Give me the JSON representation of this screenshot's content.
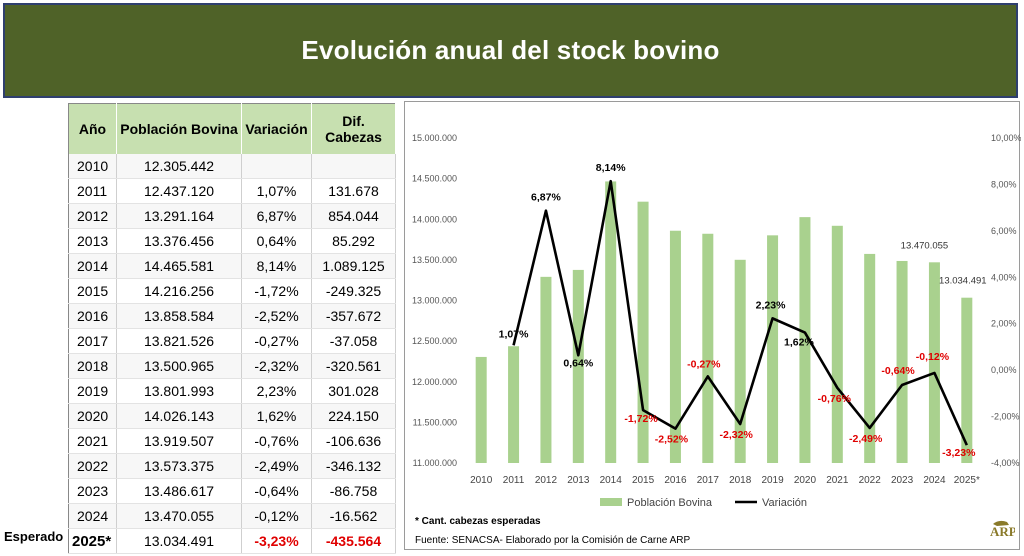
{
  "title": "Evolución anual del stock bovino",
  "table": {
    "headers": [
      "Año",
      "Población Bovina",
      "Variación",
      "Dif. Cabezas"
    ],
    "rows": [
      [
        "2010",
        "12.305.442",
        "",
        ""
      ],
      [
        "2011",
        "12.437.120",
        "1,07%",
        "131.678"
      ],
      [
        "2012",
        "13.291.164",
        "6,87%",
        "854.044"
      ],
      [
        "2013",
        "13.376.456",
        "0,64%",
        "85.292"
      ],
      [
        "2014",
        "14.465.581",
        "8,14%",
        "1.089.125"
      ],
      [
        "2015",
        "14.216.256",
        "-1,72%",
        "-249.325"
      ],
      [
        "2016",
        "13.858.584",
        "-2,52%",
        "-357.672"
      ],
      [
        "2017",
        "13.821.526",
        "-0,27%",
        "-37.058"
      ],
      [
        "2018",
        "13.500.965",
        "-2,32%",
        "-320.561"
      ],
      [
        "2019",
        "13.801.993",
        "2,23%",
        "301.028"
      ],
      [
        "2020",
        "14.026.143",
        "1,62%",
        "224.150"
      ],
      [
        "2021",
        "13.919.507",
        "-0,76%",
        "-106.636"
      ],
      [
        "2022",
        "13.573.375",
        "-2,49%",
        "-346.132"
      ],
      [
        "2023",
        "13.486.617",
        "-0,64%",
        "-86.758"
      ],
      [
        "2024",
        "13.470.055",
        "-0,12%",
        "-16.562"
      ],
      [
        "2025*",
        "13.034.491",
        "-3,23%",
        "-435.564"
      ]
    ],
    "expected_label": "Esperado"
  },
  "chart_data": {
    "type": "bar",
    "categories": [
      "2010",
      "2011",
      "2012",
      "2013",
      "2014",
      "2015",
      "2016",
      "2017",
      "2018",
      "2019",
      "2020",
      "2021",
      "2022",
      "2023",
      "2024",
      "2025*"
    ],
    "series": [
      {
        "name": "Población Bovina",
        "type": "bar",
        "axis": "left",
        "color": "#a9d18e",
        "values": [
          12305442,
          12437120,
          13291164,
          13376456,
          14465581,
          14216256,
          13858584,
          13821526,
          13500965,
          13801993,
          14026143,
          13919507,
          13573375,
          13486617,
          13470055,
          13034491
        ]
      },
      {
        "name": "Variación",
        "type": "line",
        "axis": "right",
        "color": "#000000",
        "values": [
          null,
          1.07,
          6.87,
          0.64,
          8.14,
          -1.72,
          -2.52,
          -0.27,
          -2.32,
          2.23,
          1.62,
          -0.76,
          -2.49,
          -0.64,
          -0.12,
          -3.23
        ]
      }
    ],
    "y_left": {
      "min": 11000000,
      "max": 15000000,
      "ticks": [
        "11.000.000",
        "11.500.000",
        "12.000.000",
        "12.500.000",
        "13.000.000",
        "13.500.000",
        "14.000.000",
        "14.500.000",
        "15.000.000"
      ]
    },
    "y_right": {
      "min": -4,
      "max": 10,
      "ticks": [
        "-4,00%",
        "-2,00%",
        "0,00%",
        "2,00%",
        "4,00%",
        "6,00%",
        "8,00%",
        "10,00%"
      ]
    },
    "line_labels": [
      "",
      "1,07%",
      "6,87%",
      "0,64%",
      "8,14%",
      "-1,72%",
      "-2,52%",
      "-0,27%",
      "-2,32%",
      "2,23%",
      "1,62%",
      "-0,76%",
      "-2,49%",
      "-0,64%",
      "-0,12%",
      "-3,23%"
    ],
    "bar_labels": {
      "14": "13.470.055",
      "15": "13.034.491"
    },
    "legend": {
      "position": "bottom",
      "items": [
        "Población Bovina",
        "Variación"
      ]
    },
    "positive_label_color": "#000000",
    "negative_label_color": "#e00000"
  },
  "footnotes": {
    "note": "* Cant. cabezas esperadas",
    "source": "Fuente: SENACSA- Elaborado por la Comisión de Carne ARP"
  },
  "logo_text": "ARP"
}
